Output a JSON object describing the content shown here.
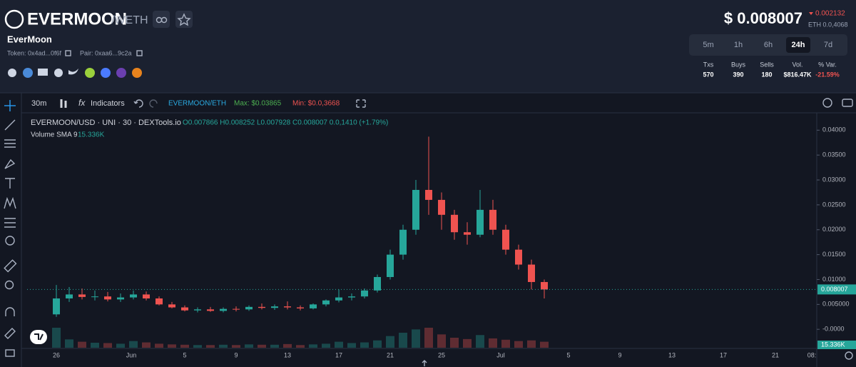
{
  "header": {
    "symbol": "EVERMOON",
    "quote": "/WETH",
    "name": "EverMoon",
    "token": "Token: 0x4ad...0f6f",
    "pair": "Pair: 0xaa6...9c2a",
    "price": "$ 0.008007",
    "change": "0.002132",
    "eth_price": "ETH 0.0,4068"
  },
  "timeframes": {
    "options": [
      "5m",
      "1h",
      "6h",
      "24h",
      "7d"
    ],
    "active": "24h"
  },
  "stats": [
    {
      "label": "Txs",
      "value": "570"
    },
    {
      "label": "Buys",
      "value": "390"
    },
    {
      "label": "Sells",
      "value": "180"
    },
    {
      "label": "Vol.",
      "value": "$816.47K"
    },
    {
      "label": "% Var.",
      "value": "-21.59%"
    }
  ],
  "toolbar": {
    "interval": "30m",
    "indicators": "Indicators",
    "pair": "EVERMOON/ETH",
    "max": "Max: $0.03865",
    "min": "Min: $0.0,3668"
  },
  "chart_data": {
    "type": "candlestick",
    "title": "EVERMOON/USD · UNI · 30 · DEXTools.io",
    "ohlc_legend": "O0.007866 H0.008252 L0.007928 C0.008007 0.0,1410 (+1.79%)",
    "volume_label": "Volume SMA 9",
    "volume_sma": "15.336K",
    "x_labels": [
      "26",
      "Jun",
      "5",
      "9",
      "13",
      "17",
      "21",
      "25",
      "Jul",
      "5",
      "9",
      "13",
      "17",
      "21",
      "08:"
    ],
    "open": [
      0.003,
      0.0062,
      0.007,
      0.0065,
      0.0066,
      0.006,
      0.0064,
      0.007,
      0.0062,
      0.005,
      0.0044,
      0.0038,
      0.004,
      0.0037,
      0.0041,
      0.004,
      0.0045,
      0.0043,
      0.0046,
      0.0044,
      0.0042,
      0.005,
      0.0058,
      0.0064,
      0.0066,
      0.0078,
      0.0105,
      0.015,
      0.02,
      0.028,
      0.026,
      0.023,
      0.0195,
      0.019,
      0.024,
      0.02,
      0.016,
      0.013,
      0.0095
    ],
    "high": [
      0.0089,
      0.0085,
      0.0082,
      0.0078,
      0.0075,
      0.0072,
      0.0078,
      0.0076,
      0.0066,
      0.0055,
      0.0048,
      0.0044,
      0.0045,
      0.0044,
      0.0046,
      0.0048,
      0.0052,
      0.005,
      0.0056,
      0.0048,
      0.0052,
      0.006,
      0.008,
      0.0072,
      0.0082,
      0.011,
      0.016,
      0.021,
      0.03,
      0.0387,
      0.0275,
      0.024,
      0.0215,
      0.028,
      0.026,
      0.021,
      0.017,
      0.014,
      0.01
    ],
    "low": [
      0.0025,
      0.0055,
      0.006,
      0.0058,
      0.0056,
      0.0055,
      0.006,
      0.0058,
      0.0048,
      0.0042,
      0.0036,
      0.0034,
      0.0035,
      0.0034,
      0.0036,
      0.0037,
      0.004,
      0.0039,
      0.004,
      0.0038,
      0.004,
      0.0046,
      0.0054,
      0.0058,
      0.0062,
      0.0074,
      0.01,
      0.014,
      0.019,
      0.023,
      0.02,
      0.018,
      0.017,
      0.0185,
      0.019,
      0.015,
      0.012,
      0.008,
      0.0062
    ],
    "close": [
      0.0062,
      0.007,
      0.0065,
      0.0066,
      0.006,
      0.0064,
      0.007,
      0.0062,
      0.005,
      0.0044,
      0.0038,
      0.004,
      0.0037,
      0.0041,
      0.004,
      0.0045,
      0.0043,
      0.0046,
      0.0044,
      0.0042,
      0.005,
      0.0058,
      0.0064,
      0.0066,
      0.0078,
      0.0105,
      0.015,
      0.02,
      0.028,
      0.026,
      0.023,
      0.0195,
      0.019,
      0.024,
      0.02,
      0.016,
      0.013,
      0.0095,
      0.008
    ],
    "volume": [
      60,
      25,
      18,
      15,
      14,
      12,
      20,
      16,
      12,
      10,
      9,
      8,
      8,
      9,
      8,
      10,
      9,
      9,
      11,
      8,
      10,
      12,
      18,
      14,
      16,
      22,
      35,
      45,
      55,
      60,
      40,
      30,
      26,
      38,
      28,
      24,
      20,
      22,
      18
    ],
    "up_color": "#26a69a",
    "down_color": "#ef5350",
    "last_price": 0.008007,
    "ylim": [
      -0.0037,
      0.0432
    ],
    "yticks": [
      {
        "value": 0,
        "label": "-0.0000"
      },
      {
        "value": 0.005,
        "label": "0.005000"
      },
      {
        "value": 0.01,
        "label": "0.01000"
      },
      {
        "value": 0.015,
        "label": "0.01500"
      },
      {
        "value": 0.02,
        "label": "0.02000"
      },
      {
        "value": 0.025,
        "label": "0.02500"
      },
      {
        "value": 0.03,
        "label": "0.03000"
      },
      {
        "value": 0.035,
        "label": "0.03500"
      },
      {
        "value": 0.04,
        "label": "0.04000"
      }
    ]
  }
}
